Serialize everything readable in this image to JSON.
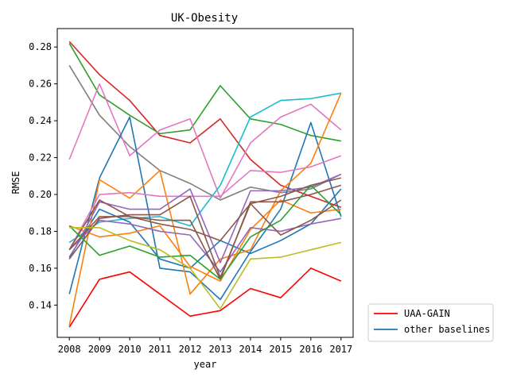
{
  "chart_data": {
    "type": "line",
    "title": "UK-Obesity",
    "xlabel": "year",
    "ylabel": "RMSE",
    "x": [
      2008,
      2009,
      2010,
      2011,
      2012,
      2013,
      2014,
      2015,
      2016,
      2017
    ],
    "xlim": [
      2007.6,
      2017.4
    ],
    "ylim": [
      0.1225,
      0.29
    ],
    "yticks": [
      0.14,
      0.16,
      0.18,
      0.2,
      0.22,
      0.24,
      0.26,
      0.28
    ],
    "ytick_labels": [
      "0.14",
      "0.16",
      "0.18",
      "0.20",
      "0.22",
      "0.24",
      "0.26",
      "0.28"
    ],
    "grid": false,
    "legend_position": "outside-bottom-right",
    "legend": [
      {
        "label": "UAA-GAIN",
        "color": "#ff0000"
      },
      {
        "label": "other baselines",
        "color": "#1f77b4"
      }
    ],
    "series": [
      {
        "color": "#ff0000",
        "values": [
          0.128,
          0.154,
          0.158,
          0.146,
          0.134,
          0.137,
          0.149,
          0.144,
          0.16,
          0.153
        ]
      },
      {
        "color": "#d62728",
        "values": [
          0.283,
          0.265,
          0.251,
          0.232,
          0.228,
          0.241,
          0.219,
          0.205,
          0.199,
          0.193
        ]
      },
      {
        "color": "#2ca02c",
        "values": [
          0.282,
          0.254,
          0.243,
          0.233,
          0.235,
          0.259,
          0.241,
          0.238,
          0.232,
          0.229
        ]
      },
      {
        "color": "#7f7f7f",
        "values": [
          0.27,
          0.243,
          0.226,
          0.213,
          0.206,
          0.197,
          0.204,
          0.201,
          0.203,
          0.211
        ]
      },
      {
        "color": "#e377c2",
        "values": [
          0.219,
          0.26,
          0.221,
          0.235,
          0.241,
          0.198,
          0.228,
          0.242,
          0.249,
          0.235
        ]
      },
      {
        "color": "#17becf",
        "values": [
          0.174,
          0.185,
          0.187,
          0.188,
          0.183,
          0.205,
          0.242,
          0.251,
          0.252,
          0.255
        ]
      },
      {
        "color": "#1f77b4",
        "values": [
          0.146,
          0.209,
          0.242,
          0.16,
          0.158,
          0.143,
          0.169,
          0.192,
          0.239,
          0.188
        ]
      },
      {
        "color": "#1f77b4",
        "values": [
          0.166,
          0.192,
          0.185,
          0.165,
          0.16,
          0.175,
          0.168,
          0.175,
          0.184,
          0.203
        ]
      },
      {
        "color": "#ff7f0e",
        "values": [
          0.129,
          0.208,
          0.198,
          0.213,
          0.146,
          0.165,
          0.17,
          0.202,
          0.217,
          0.255
        ]
      },
      {
        "color": "#ff7f0e",
        "values": [
          0.183,
          0.177,
          0.179,
          0.183,
          0.161,
          0.153,
          0.181,
          0.197,
          0.19,
          0.192
        ]
      },
      {
        "color": "#e377c2",
        "values": [
          0.17,
          0.2,
          0.201,
          0.199,
          0.199,
          0.199,
          0.213,
          0.212,
          0.215,
          0.221
        ]
      },
      {
        "color": "#9467bd",
        "values": [
          0.165,
          0.196,
          0.192,
          0.192,
          0.203,
          0.163,
          0.202,
          0.202,
          0.204,
          0.211
        ]
      },
      {
        "color": "#9467bd",
        "values": [
          0.17,
          0.186,
          0.184,
          0.18,
          0.178,
          0.158,
          0.182,
          0.18,
          0.184,
          0.187
        ]
      },
      {
        "color": "#8c564b",
        "values": [
          0.17,
          0.188,
          0.188,
          0.186,
          0.186,
          0.154,
          0.196,
          0.196,
          0.2,
          0.205
        ]
      },
      {
        "color": "#8c564b",
        "values": [
          0.165,
          0.187,
          0.189,
          0.189,
          0.199,
          0.155,
          0.195,
          0.178,
          0.186,
          0.197
        ]
      },
      {
        "color": "#8c564b",
        "values": [
          0.17,
          0.197,
          0.188,
          0.184,
          0.181,
          0.175,
          0.195,
          0.199,
          0.205,
          0.209
        ]
      },
      {
        "color": "#2ca02c",
        "values": [
          0.183,
          0.167,
          0.172,
          0.166,
          0.167,
          0.154,
          0.177,
          0.186,
          0.205,
          0.189
        ]
      },
      {
        "color": "#bcbd22",
        "values": [
          0.182,
          0.182,
          0.175,
          0.17,
          0.16,
          0.138,
          0.165,
          0.166,
          0.17,
          0.174
        ]
      }
    ]
  }
}
